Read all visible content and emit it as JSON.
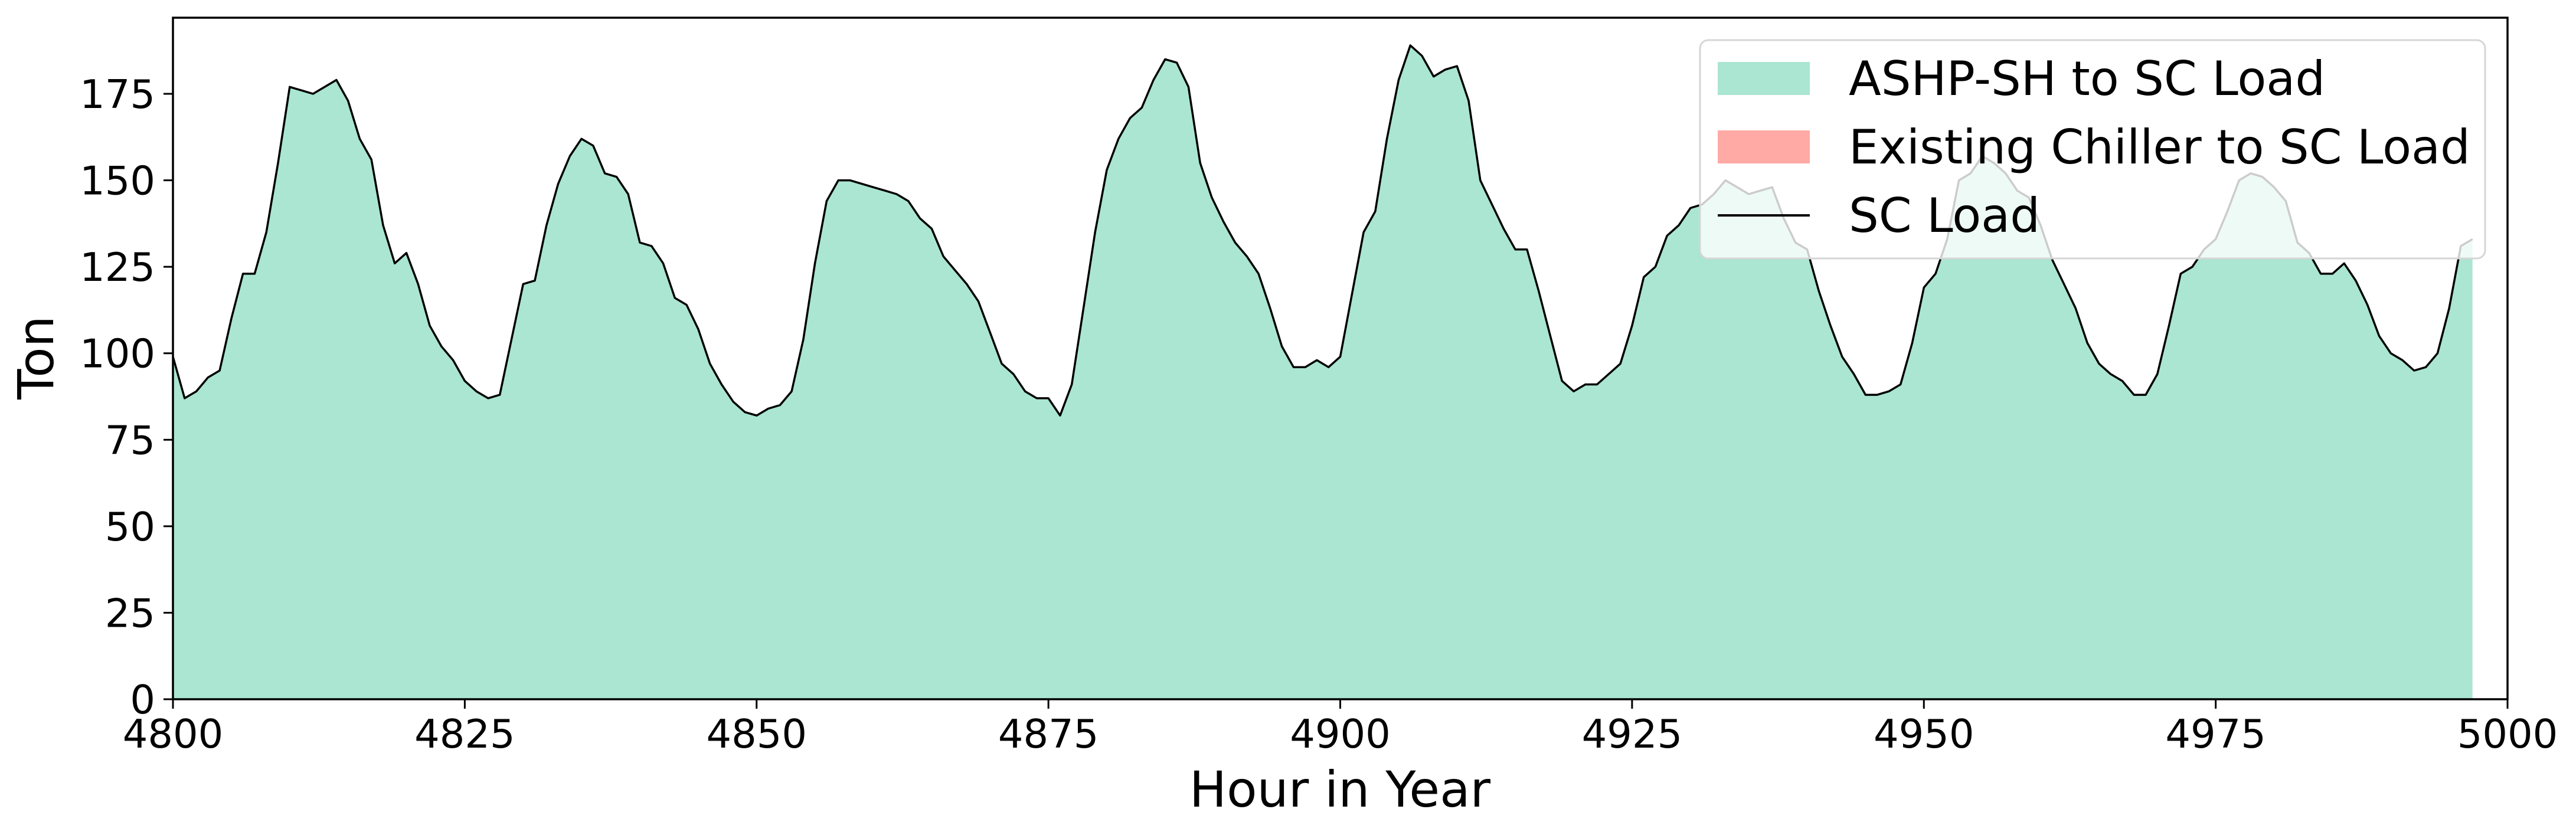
{
  "chart_data": {
    "type": "area",
    "xlabel": "Hour in Year",
    "ylabel": "Ton",
    "xlim": [
      4800,
      5000
    ],
    "ylim": [
      0,
      197
    ],
    "xticks": [
      4800,
      4825,
      4850,
      4875,
      4900,
      4925,
      4950,
      4975,
      5000
    ],
    "yticks": [
      0,
      25,
      50,
      75,
      100,
      125,
      150,
      175
    ],
    "grid": false,
    "legend_position": "top-right",
    "colors": {
      "ashp": "#aae6d1",
      "chiller": "#ffaaa4",
      "line": "#000000"
    },
    "x_start": 4800,
    "x_step": 1,
    "series": [
      {
        "name": "ASHP-SH to SC Load",
        "values": [
          99,
          87,
          89,
          93,
          95,
          110,
          123,
          123,
          135,
          155,
          177,
          176,
          175,
          177,
          179,
          173,
          162,
          156,
          137,
          126,
          129,
          120,
          108,
          102,
          98,
          92,
          89,
          87,
          88,
          104,
          120,
          121,
          137,
          149,
          157,
          162,
          160,
          152,
          151,
          146,
          132,
          131,
          126,
          116,
          114,
          107,
          97,
          91,
          86,
          83,
          82,
          84,
          85,
          89,
          104,
          126,
          144,
          150,
          150,
          149,
          148,
          147,
          146,
          144,
          139,
          136,
          128,
          124,
          120,
          115,
          106,
          97,
          94,
          89,
          87,
          87,
          82,
          91,
          113,
          135,
          153,
          162,
          168,
          171,
          179,
          185,
          184,
          177,
          155,
          145,
          138,
          132,
          128,
          123,
          113,
          102,
          96,
          96,
          98,
          96,
          99,
          117,
          135,
          141,
          162,
          179,
          189,
          186,
          180,
          182,
          183,
          173,
          150,
          143,
          136,
          130,
          130,
          118,
          105,
          92,
          89,
          91,
          91,
          94,
          97,
          108,
          122,
          125,
          134,
          137,
          142,
          143,
          146,
          150,
          148,
          146,
          147,
          148,
          139,
          132,
          130,
          118,
          108,
          99,
          94,
          88,
          88,
          89,
          91,
          103,
          119,
          123,
          133,
          150,
          152,
          157,
          155,
          152,
          147,
          145,
          137,
          127,
          120,
          113,
          103,
          97,
          94,
          92,
          88,
          88,
          94,
          108,
          123,
          125,
          130,
          133,
          141,
          150,
          152,
          151,
          148,
          144,
          132,
          129,
          123,
          123,
          126,
          121,
          114,
          105,
          100,
          98,
          95,
          96,
          100,
          113,
          131,
          133
        ],
        "color": "#aae6d1"
      },
      {
        "name": "Existing Chiller to SC Load",
        "values": [
          0,
          0,
          0,
          0,
          0,
          0,
          0,
          0,
          0,
          0,
          0,
          0,
          0,
          0,
          0,
          0,
          0,
          0,
          0,
          0,
          0,
          0,
          0,
          0,
          0,
          0,
          0,
          0,
          0,
          0,
          0,
          0,
          0,
          0,
          0,
          0,
          0,
          0,
          0,
          0,
          0,
          0,
          0,
          0,
          0,
          0,
          0,
          0,
          0,
          0,
          0,
          0,
          0,
          0,
          0,
          0,
          0,
          0,
          0,
          0,
          0,
          0,
          0,
          0,
          0,
          0,
          0,
          0,
          0,
          0,
          0,
          0,
          0,
          0,
          0,
          0,
          0,
          0,
          0,
          0,
          0,
          0,
          0,
          0,
          0,
          0,
          0,
          0,
          0,
          0,
          0,
          0,
          0,
          0,
          0,
          0,
          0,
          0,
          0,
          0,
          0,
          0,
          0,
          0,
          0,
          0,
          0,
          0,
          0,
          0,
          0,
          0,
          0,
          0,
          0,
          0,
          0,
          0,
          0,
          0,
          0,
          0,
          0,
          0,
          0,
          0,
          0,
          0,
          0,
          0,
          0,
          0,
          0,
          0,
          0,
          0,
          0,
          0,
          0,
          0,
          0,
          0,
          0,
          0,
          0,
          0,
          0,
          0,
          0,
          0,
          0,
          0,
          0,
          0,
          0,
          0,
          0,
          0,
          0,
          0,
          0,
          0,
          0,
          0,
          0,
          0,
          0,
          0,
          0,
          0,
          0,
          0,
          0,
          0,
          0,
          0,
          0,
          0,
          0,
          0,
          0,
          0,
          0,
          0,
          0,
          0,
          0,
          0,
          0,
          0,
          0,
          0,
          0,
          0,
          0,
          0,
          0,
          0,
          0,
          0
        ],
        "color": "#ffaaa4"
      },
      {
        "name": "SC Load",
        "values": [
          99,
          87,
          89,
          93,
          95,
          110,
          123,
          123,
          135,
          155,
          177,
          176,
          175,
          177,
          179,
          173,
          162,
          156,
          137,
          126,
          129,
          120,
          108,
          102,
          98,
          92,
          89,
          87,
          88,
          104,
          120,
          121,
          137,
          149,
          157,
          162,
          160,
          152,
          151,
          146,
          132,
          131,
          126,
          116,
          114,
          107,
          97,
          91,
          86,
          83,
          82,
          84,
          85,
          89,
          104,
          126,
          144,
          150,
          150,
          149,
          148,
          147,
          146,
          144,
          139,
          136,
          128,
          124,
          120,
          115,
          106,
          97,
          94,
          89,
          87,
          87,
          82,
          91,
          113,
          135,
          153,
          162,
          168,
          171,
          179,
          185,
          184,
          177,
          155,
          145,
          138,
          132,
          128,
          123,
          113,
          102,
          96,
          96,
          98,
          96,
          99,
          117,
          135,
          141,
          162,
          179,
          189,
          186,
          180,
          182,
          183,
          173,
          150,
          143,
          136,
          130,
          130,
          118,
          105,
          92,
          89,
          91,
          91,
          94,
          97,
          108,
          122,
          125,
          134,
          137,
          142,
          143,
          146,
          150,
          148,
          146,
          147,
          148,
          139,
          132,
          130,
          118,
          108,
          99,
          94,
          88,
          88,
          89,
          91,
          103,
          119,
          123,
          133,
          150,
          152,
          157,
          155,
          152,
          147,
          145,
          137,
          127,
          120,
          113,
          103,
          97,
          94,
          92,
          88,
          88,
          94,
          108,
          123,
          125,
          130,
          133,
          141,
          150,
          152,
          151,
          148,
          144,
          132,
          129,
          123,
          123,
          126,
          121,
          114,
          105,
          100,
          98,
          95,
          96,
          100,
          113,
          131,
          133
        ],
        "color": "#000000"
      }
    ]
  }
}
